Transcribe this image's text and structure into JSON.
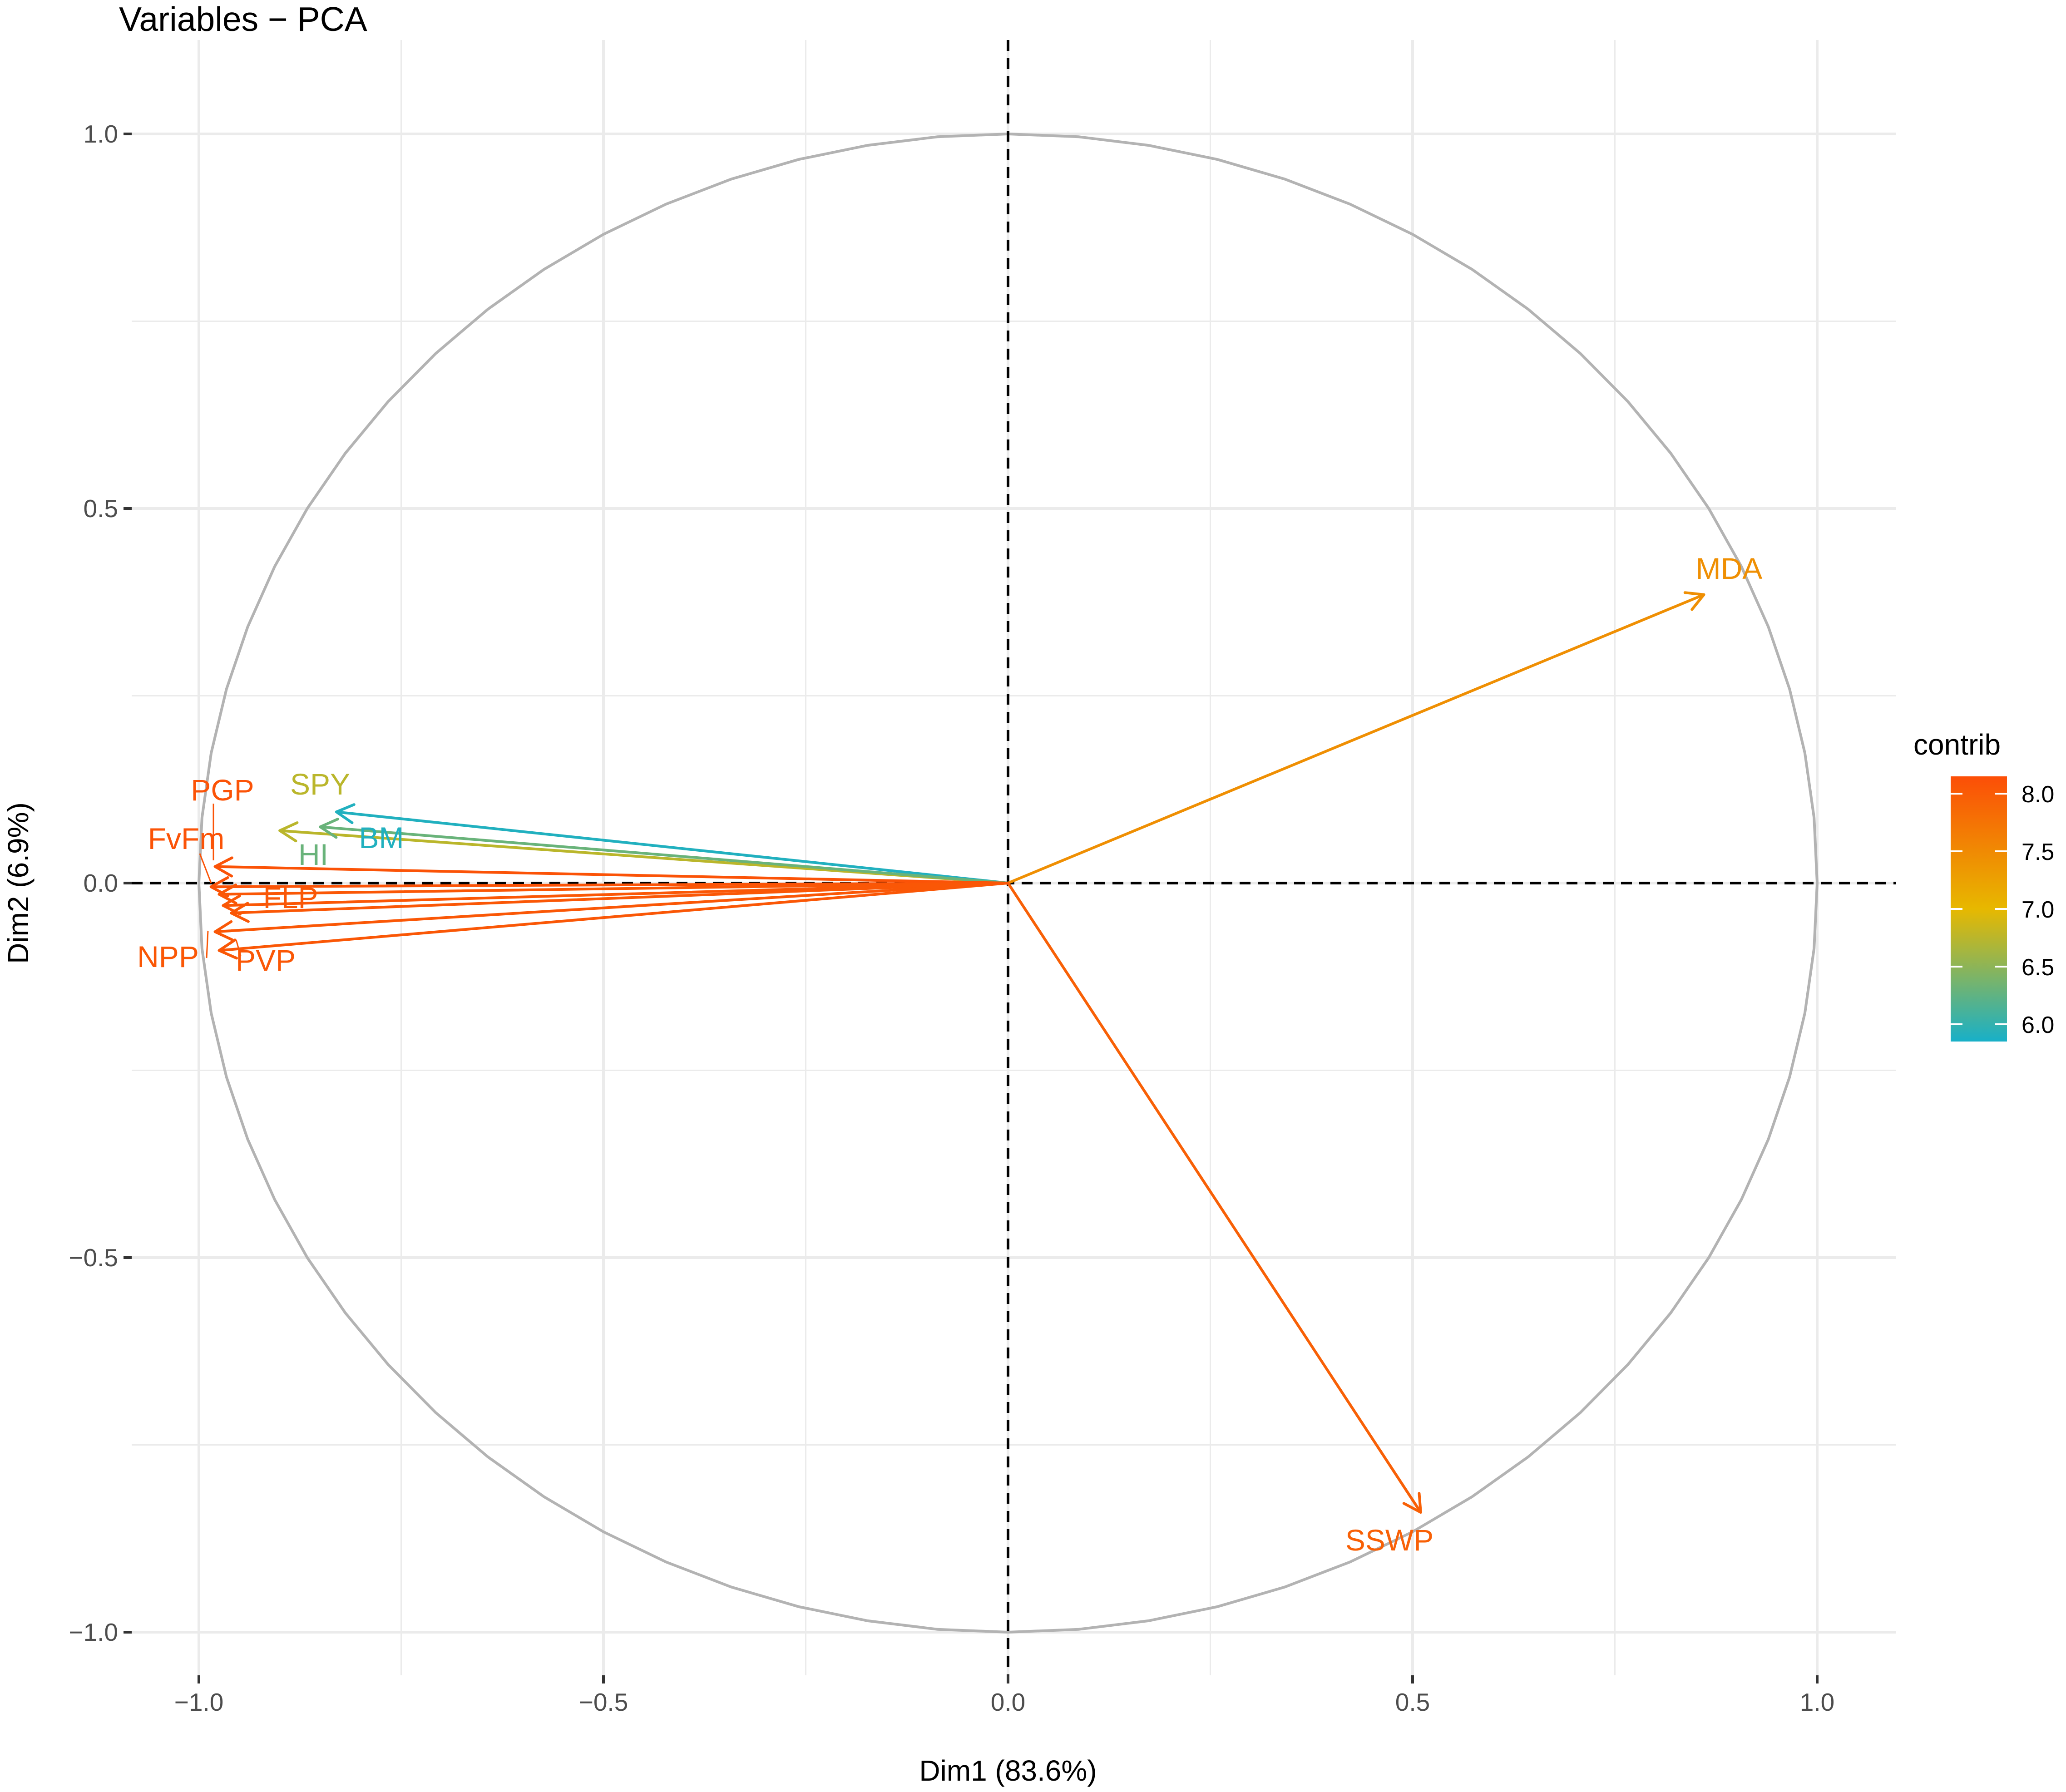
{
  "chart_data": {
    "type": "scatter",
    "subtype": "pca-variable-correlation-circle",
    "title": "Variables − PCA",
    "xlabel": "Dim1 (83.6%)",
    "ylabel": "Dim2 (6.9%)",
    "xlim": [
      -1.1,
      1.1
    ],
    "ylim": [
      -1.07,
      1.07
    ],
    "x_ticks": [
      -1.0,
      -0.5,
      0.0,
      0.5,
      1.0
    ],
    "x_tick_labels": [
      "−1.0",
      "−0.5",
      "0.0",
      "0.5",
      "1.0"
    ],
    "y_ticks": [
      -1.0,
      -0.5,
      0.0,
      0.5,
      1.0
    ],
    "y_tick_labels": [
      "−1.0",
      "−0.5",
      "0.0",
      "0.5",
      "1.0"
    ],
    "grid": true,
    "reference_lines": [
      "x=0",
      "y=0"
    ],
    "unit_circle": true,
    "variables": [
      {
        "label": "MDA",
        "x": 0.86,
        "y": 0.385,
        "contrib": 7.45
      },
      {
        "label": "SSWP",
        "x": 0.51,
        "y": -0.84,
        "contrib": 7.95
      },
      {
        "label": "SPY",
        "x": -0.9,
        "y": 0.07,
        "contrib": 6.75
      },
      {
        "label": "BM",
        "x": -0.83,
        "y": 0.095,
        "contrib": 5.9
      },
      {
        "label": "HI",
        "x": -0.85,
        "y": 0.075,
        "contrib": 6.3
      },
      {
        "label": "PGP",
        "x": -0.98,
        "y": 0.022,
        "contrib": 8.1
      },
      {
        "label": "FvFm",
        "x": -0.985,
        "y": -0.005,
        "contrib": 8.1
      },
      {
        "label": "FLP",
        "x": -0.96,
        "y": -0.04,
        "contrib": 8.05
      },
      {
        "label": "NPP",
        "x": -0.98,
        "y": -0.065,
        "contrib": 8.05
      },
      {
        "label": "PVP",
        "x": -0.975,
        "y": -0.09,
        "contrib": 8.05
      },
      {
        "label": "",
        "x": -0.975,
        "y": -0.015,
        "contrib": 8.05
      },
      {
        "label": "",
        "x": -0.97,
        "y": -0.03,
        "contrib": 8.05
      }
    ],
    "legend": {
      "title": "contrib",
      "position": "right",
      "type": "gradient",
      "range": [
        5.85,
        8.15
      ],
      "breaks": [
        6.0,
        6.5,
        7.0,
        7.5,
        8.0
      ],
      "break_labels": [
        "6.0",
        "6.5",
        "7.0",
        "7.5",
        "8.0"
      ],
      "colors": [
        "#18B0C8",
        "#E7B800",
        "#FC4E07"
      ]
    }
  }
}
